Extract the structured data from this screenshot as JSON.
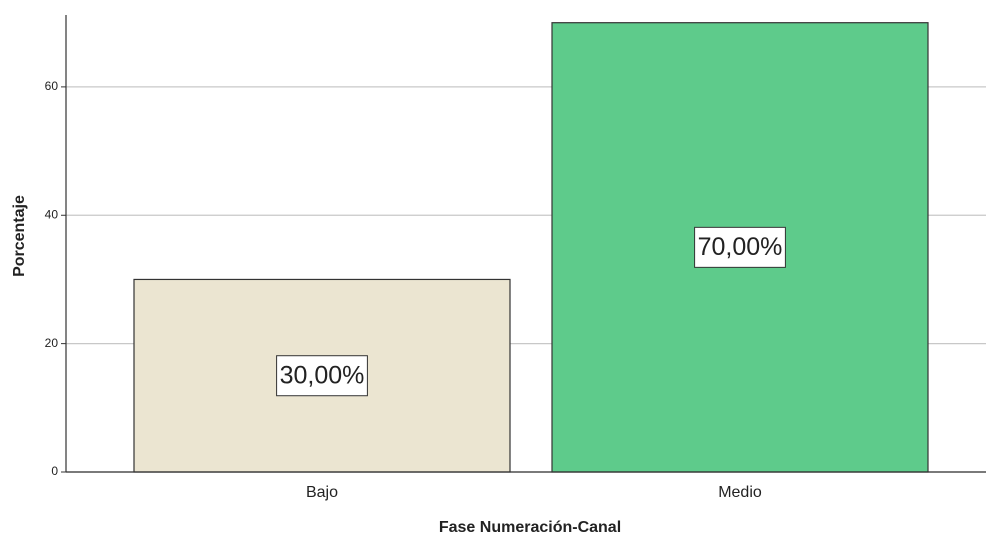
{
  "chart_data": {
    "type": "bar",
    "x_label": "Fase Numeración-Canal",
    "y_label": "Porcentaje",
    "categories": [
      "Bajo",
      "Medio"
    ],
    "values": [
      30,
      70
    ],
    "value_labels": [
      "30,00%",
      "70,00%"
    ],
    "colors": [
      "#ebe5d1",
      "#5ecb8b"
    ],
    "ylim": [
      0,
      71.2
    ],
    "yticks": [
      0,
      20,
      40,
      60
    ],
    "grid": true
  }
}
